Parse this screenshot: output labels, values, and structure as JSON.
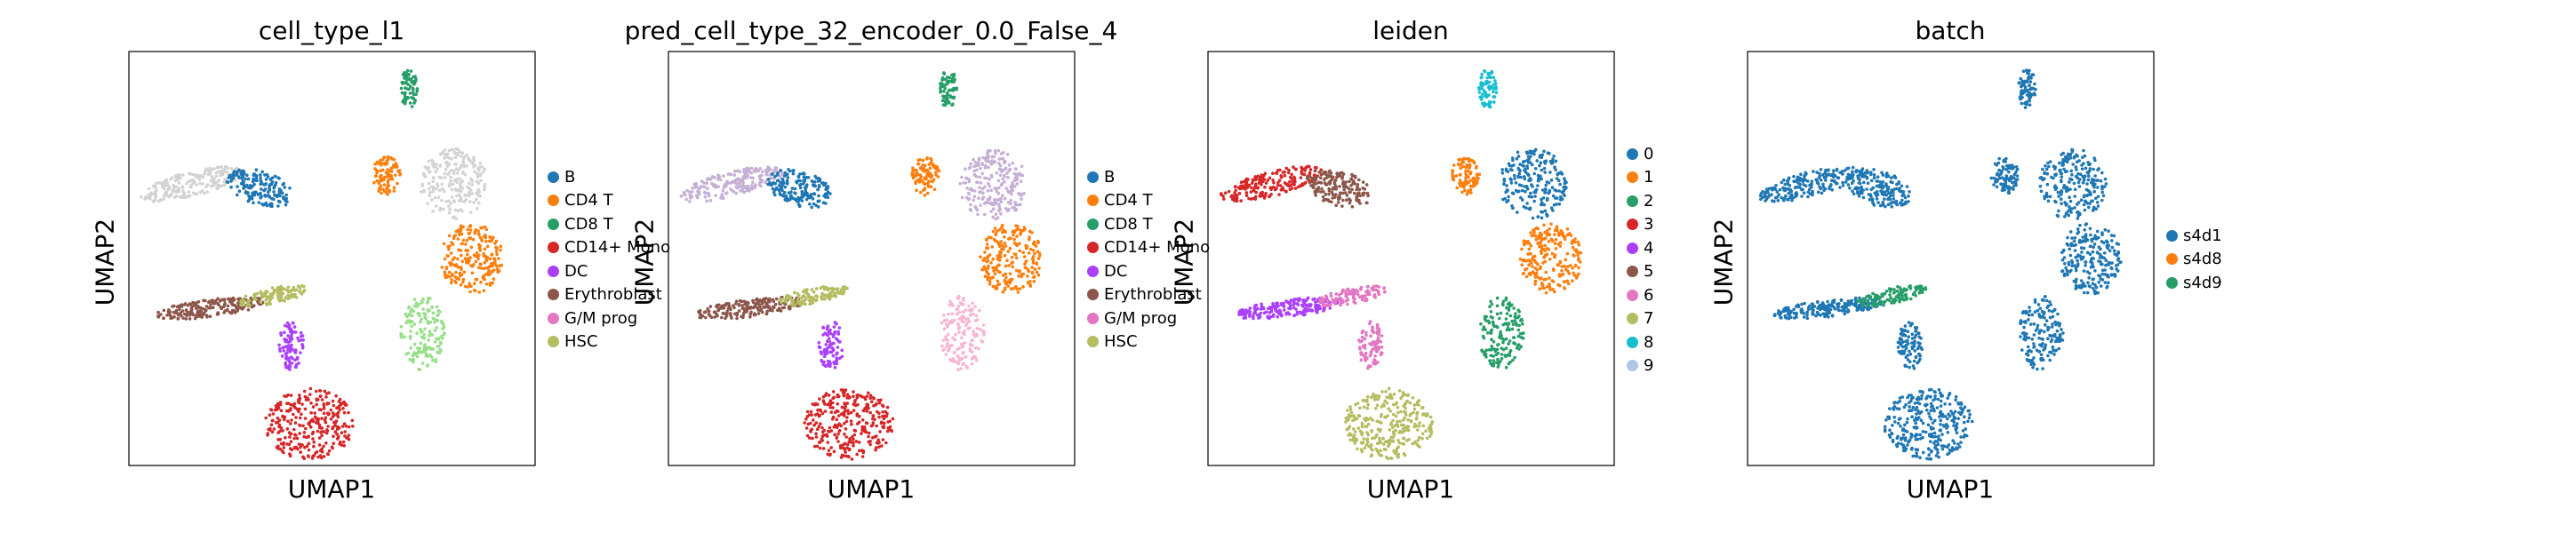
{
  "chart_data": [
    {
      "type": "scatter",
      "title": "cell_type_l1",
      "xlabel": "UMAP1",
      "ylabel": "UMAP2",
      "legend_position": "right",
      "legend": [
        {
          "label": "B",
          "color": "#1f77b4"
        },
        {
          "label": "CD4 T",
          "color": "#ff7f0e"
        },
        {
          "label": "CD8 T",
          "color": "#279e68"
        },
        {
          "label": "CD14+ Mono",
          "color": "#d62728"
        },
        {
          "label": "DC",
          "color": "#aa40fc"
        },
        {
          "label": "Erythroblast",
          "color": "#8c564b"
        },
        {
          "label": "G/M prog",
          "color": "#e377c2"
        },
        {
          "label": "HSC",
          "color": "#b5bd61"
        }
      ],
      "clusters": [
        {
          "x": 3.2,
          "y": 9.1,
          "color": "#279e68"
        },
        {
          "x": 2.7,
          "y": 7.0,
          "color": "#ff7f0e"
        },
        {
          "x": 4.2,
          "y": 6.8,
          "color": "#d3d3d3"
        },
        {
          "x": 4.6,
          "y": 5.0,
          "color": "#ff7f0e"
        },
        {
          "x": 3.5,
          "y": 3.2,
          "color": "#98df8a"
        },
        {
          "x": -1.6,
          "y": 6.8,
          "color": "#d3d3d3"
        },
        {
          "x": -0.1,
          "y": 6.7,
          "color": "#1f77b4"
        },
        {
          "x": -1.2,
          "y": 3.8,
          "color": "#8c564b"
        },
        {
          "x": 0.2,
          "y": 4.1,
          "color": "#b5bd61"
        },
        {
          "x": 0.6,
          "y": 2.9,
          "color": "#aa40fc"
        },
        {
          "x": 1.0,
          "y": 1.0,
          "color": "#d62728"
        }
      ]
    },
    {
      "type": "scatter",
      "title": "pred_cell_type_32_encoder_0.0_False_4",
      "xlabel": "UMAP1",
      "ylabel": "UMAP2",
      "legend_position": "right",
      "legend": [
        {
          "label": "B",
          "color": "#1f77b4"
        },
        {
          "label": "CD4 T",
          "color": "#ff7f0e"
        },
        {
          "label": "CD8 T",
          "color": "#279e68"
        },
        {
          "label": "CD14+ Mono",
          "color": "#d62728"
        },
        {
          "label": "DC",
          "color": "#aa40fc"
        },
        {
          "label": "Erythroblast",
          "color": "#8c564b"
        },
        {
          "label": "G/M prog",
          "color": "#e377c2"
        },
        {
          "label": "HSC",
          "color": "#b5bd61"
        }
      ],
      "clusters": [
        {
          "x": 3.2,
          "y": 9.1,
          "color": "#279e68"
        },
        {
          "x": 2.7,
          "y": 7.0,
          "color": "#ff7f0e"
        },
        {
          "x": 4.2,
          "y": 6.8,
          "color": "#c5b0d5"
        },
        {
          "x": 4.6,
          "y": 5.0,
          "color": "#ff7f0e"
        },
        {
          "x": 3.5,
          "y": 3.2,
          "color": "#f7b6d2"
        },
        {
          "x": -1.6,
          "y": 6.8,
          "color": "#c5b0d5"
        },
        {
          "x": -0.1,
          "y": 6.7,
          "color": "#1f77b4"
        },
        {
          "x": -1.2,
          "y": 3.8,
          "color": "#8c564b"
        },
        {
          "x": 0.2,
          "y": 4.1,
          "color": "#b5bd61"
        },
        {
          "x": 0.6,
          "y": 2.9,
          "color": "#aa40fc"
        },
        {
          "x": 1.0,
          "y": 1.0,
          "color": "#d62728"
        }
      ]
    },
    {
      "type": "scatter",
      "title": "leiden",
      "xlabel": "UMAP1",
      "ylabel": "UMAP2",
      "legend_position": "right",
      "legend": [
        {
          "label": "0",
          "color": "#1f77b4"
        },
        {
          "label": "1",
          "color": "#ff7f0e"
        },
        {
          "label": "2",
          "color": "#279e68"
        },
        {
          "label": "3",
          "color": "#d62728"
        },
        {
          "label": "4",
          "color": "#aa40fc"
        },
        {
          "label": "5",
          "color": "#8c564b"
        },
        {
          "label": "6",
          "color": "#e377c2"
        },
        {
          "label": "7",
          "color": "#b5bd61"
        },
        {
          "label": "8",
          "color": "#17becf"
        },
        {
          "label": "9",
          "color": "#aec7e8"
        }
      ],
      "clusters": [
        {
          "x": 3.2,
          "y": 9.1,
          "color": "#17becf"
        },
        {
          "x": 2.7,
          "y": 7.0,
          "color": "#ff7f0e"
        },
        {
          "x": 4.2,
          "y": 6.8,
          "color": "#1f77b4"
        },
        {
          "x": 4.6,
          "y": 5.0,
          "color": "#ff7f0e"
        },
        {
          "x": 3.5,
          "y": 3.2,
          "color": "#279e68"
        },
        {
          "x": -1.6,
          "y": 6.8,
          "color": "#d62728"
        },
        {
          "x": -0.1,
          "y": 6.7,
          "color": "#8c564b"
        },
        {
          "x": -1.2,
          "y": 3.8,
          "color": "#aa40fc"
        },
        {
          "x": 0.2,
          "y": 4.1,
          "color": "#e377c2"
        },
        {
          "x": 0.6,
          "y": 2.9,
          "color": "#e377c2"
        },
        {
          "x": 1.0,
          "y": 1.0,
          "color": "#b5bd61"
        }
      ]
    },
    {
      "type": "scatter",
      "title": "batch",
      "xlabel": "UMAP1",
      "ylabel": "UMAP2",
      "legend_position": "right",
      "legend": [
        {
          "label": "s4d1",
          "color": "#1f77b4"
        },
        {
          "label": "s4d8",
          "color": "#ff7f0e"
        },
        {
          "label": "s4d9",
          "color": "#279e68"
        }
      ],
      "clusters": [
        {
          "x": 3.2,
          "y": 9.1,
          "color": "#1f77b4"
        },
        {
          "x": 2.7,
          "y": 7.0,
          "color": "#1f77b4"
        },
        {
          "x": 4.2,
          "y": 6.8,
          "color": "#1f77b4"
        },
        {
          "x": 4.6,
          "y": 5.0,
          "color": "#1f77b4"
        },
        {
          "x": 3.5,
          "y": 3.2,
          "color": "#1f77b4"
        },
        {
          "x": -1.6,
          "y": 6.8,
          "color": "#1f77b4"
        },
        {
          "x": -0.1,
          "y": 6.7,
          "color": "#1f77b4"
        },
        {
          "x": -1.2,
          "y": 3.8,
          "color": "#1f77b4"
        },
        {
          "x": 0.2,
          "y": 4.1,
          "color": "#279e68"
        },
        {
          "x": 0.6,
          "y": 2.9,
          "color": "#1f77b4"
        },
        {
          "x": 1.0,
          "y": 1.0,
          "color": "#1f77b4"
        }
      ]
    }
  ]
}
